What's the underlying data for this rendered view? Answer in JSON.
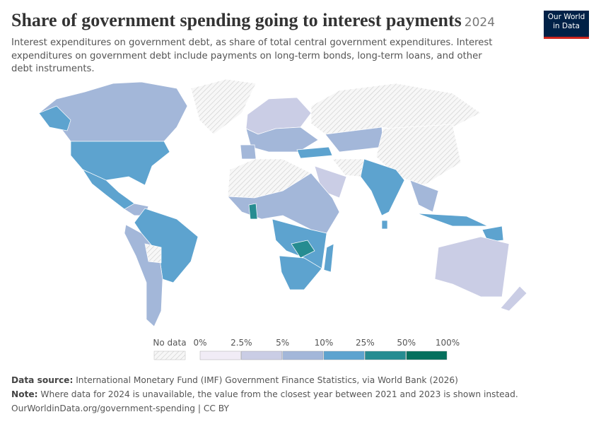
{
  "header": {
    "title": "Share of government spending going to interest payments",
    "year": "2024",
    "subtitle": "Interest expenditures on government debt, as share of total central government expenditures. Interest expenditures on government debt include payments on long-term bonds, long-term loans, and other debt instruments."
  },
  "logo": {
    "lines": [
      "Our World",
      "in Data"
    ]
  },
  "legend": {
    "no_data": "No data",
    "ticks": [
      "0%",
      "2.5%",
      "5%",
      "10%",
      "25%",
      "50%",
      "100%"
    ],
    "colors": [
      "#f1ecf6",
      "#cacde5",
      "#a3b7d9",
      "#5da3cf",
      "#268c91",
      "#06705d"
    ]
  },
  "footer": {
    "source_label": "Data source:",
    "source": "International Monetary Fund (IMF) Government Finance Statistics, via World Bank (2026)",
    "note_label": "Note:",
    "note": "Where data for 2024 is unavailable, the value from the closest year between 2021 and 2023 is shown instead.",
    "url": "OurWorldinData.org/government-spending | CC BY"
  }
}
